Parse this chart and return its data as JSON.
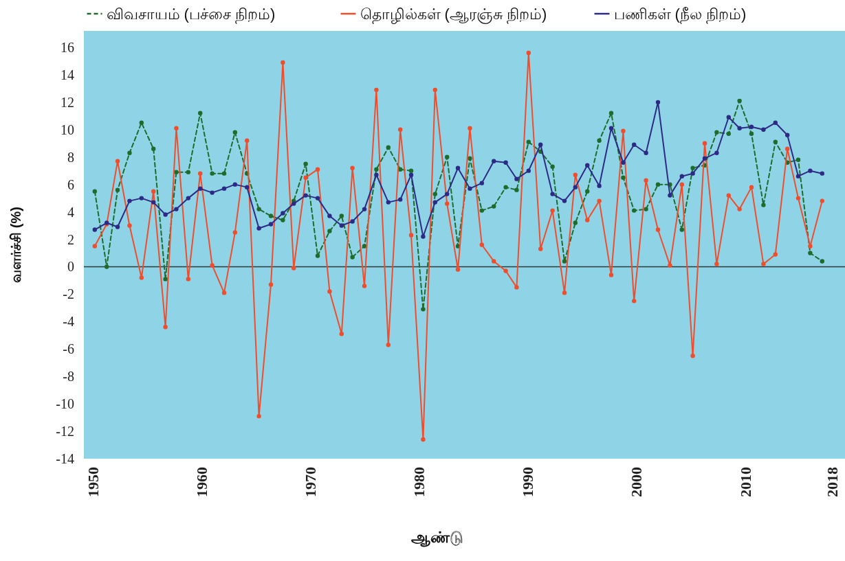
{
  "chart_data": {
    "type": "line",
    "xlabel": "ஆண்டு",
    "ylabel": "வளர்ச்சி (%)",
    "x": [
      1950.2,
      1951.3,
      1952.3,
      1953.4,
      1954.5,
      1955.6,
      1956.7,
      1957.7,
      1958.8,
      1959.9,
      1961.0,
      1962.1,
      1963.1,
      1964.2,
      1965.3,
      1966.4,
      1967.5,
      1968.5,
      1969.6,
      1970.7,
      1971.8,
      1972.9,
      1973.9,
      1975.0,
      1976.1,
      1977.2,
      1978.3,
      1979.3,
      1980.4,
      1981.5,
      1982.6,
      1983.6,
      1984.7,
      1985.8,
      1986.9,
      1988.0,
      1989.0,
      1990.1,
      1991.2,
      1992.3,
      1993.4,
      1994.4,
      1995.5,
      1996.6,
      1997.7,
      1998.8,
      1999.8,
      2000.9,
      2002.0,
      2003.1,
      2004.2,
      2005.2,
      2006.3,
      2007.4,
      2008.5,
      2009.5,
      2010.6,
      2011.7,
      2012.8,
      2013.9,
      2014.9,
      2016.0,
      2017.1
    ],
    "series": [
      {
        "name": "விவசாயம் (பச்சை நிறம்)",
        "color": "#1e6b2c",
        "line_style": "dashed",
        "values": [
          5.5,
          0.0,
          5.6,
          8.3,
          10.5,
          8.6,
          -0.9,
          6.9,
          6.9,
          11.2,
          6.8,
          6.8,
          9.8,
          6.8,
          4.2,
          3.7,
          3.4,
          4.8,
          7.5,
          0.8,
          2.6,
          3.7,
          0.7,
          1.5,
          7.1,
          8.7,
          7.1,
          7.0,
          -3.1,
          5.3,
          8.0,
          1.5,
          7.9,
          4.1,
          4.4,
          5.8,
          5.6,
          9.1,
          8.4,
          7.3,
          0.4,
          3.2,
          5.5,
          9.2,
          11.2,
          6.5,
          4.1,
          4.2,
          6.0,
          6.0,
          2.7,
          7.2,
          7.4,
          9.8,
          9.7,
          12.1,
          9.7,
          4.5,
          9.1,
          7.6,
          7.8,
          1.0,
          0.4
        ]
      },
      {
        "name": "தொழில்கள் (ஆரஞ்சு நிறம்)",
        "color": "#ef4d2b",
        "line_style": "solid",
        "values": [
          1.5,
          3.1,
          7.7,
          3.0,
          -0.8,
          5.5,
          -4.4,
          10.1,
          -0.9,
          6.8,
          0.1,
          -1.9,
          2.5,
          9.2,
          -10.9,
          -1.3,
          14.9,
          -0.1,
          6.5,
          7.1,
          -1.8,
          -4.9,
          7.2,
          -1.4,
          12.9,
          -5.7,
          10.0,
          2.3,
          -12.6,
          12.9,
          4.6,
          -0.2,
          10.1,
          1.6,
          0.4,
          -0.3,
          -1.5,
          15.6,
          1.3,
          4.1,
          -1.9,
          6.7,
          3.4,
          4.8,
          -0.6,
          9.9,
          -2.5,
          6.3,
          2.7,
          0.1,
          6.0,
          -6.5,
          9.0,
          0.2,
          5.2,
          4.2,
          5.8,
          0.2,
          0.9,
          8.6,
          5.0,
          1.5,
          4.8
        ]
      },
      {
        "name": "பணிகள் (நீல நிறம்)",
        "color": "#2d2a86",
        "line_style": "solid",
        "values": [
          2.7,
          3.2,
          2.9,
          4.8,
          5.0,
          4.7,
          3.8,
          4.2,
          5.0,
          5.7,
          5.4,
          5.7,
          6.0,
          5.8,
          2.8,
          3.1,
          3.9,
          4.6,
          5.2,
          5.0,
          3.7,
          3.0,
          3.3,
          4.2,
          6.7,
          4.7,
          4.9,
          6.7,
          2.2,
          4.7,
          5.3,
          7.2,
          5.7,
          6.1,
          7.7,
          7.6,
          6.4,
          7.0,
          8.9,
          5.3,
          4.8,
          5.8,
          7.4,
          5.9,
          10.1,
          7.6,
          8.9,
          8.3,
          12.0,
          5.2,
          6.6,
          6.8,
          7.9,
          8.3,
          10.9,
          10.1,
          10.2,
          10.0,
          10.5,
          9.6,
          6.6,
          7.0,
          6.8
        ]
      }
    ],
    "xlim": [
      1949.2,
      2019.2
    ],
    "xticks": [
      1950,
      1960,
      1970,
      1980,
      1990,
      2000,
      2010,
      2018
    ],
    "ylim": [
      -14,
      17.2
    ],
    "yticks": [
      -14,
      -12,
      -10,
      -8,
      -6,
      -4,
      -2,
      0,
      2,
      4,
      6,
      8,
      10,
      12,
      14,
      16
    ],
    "ref_lines": [
      {
        "axis": "y",
        "value": 0,
        "color": "#2b3a3a"
      }
    ],
    "marker": "circle",
    "grid": false,
    "legend": "top"
  }
}
